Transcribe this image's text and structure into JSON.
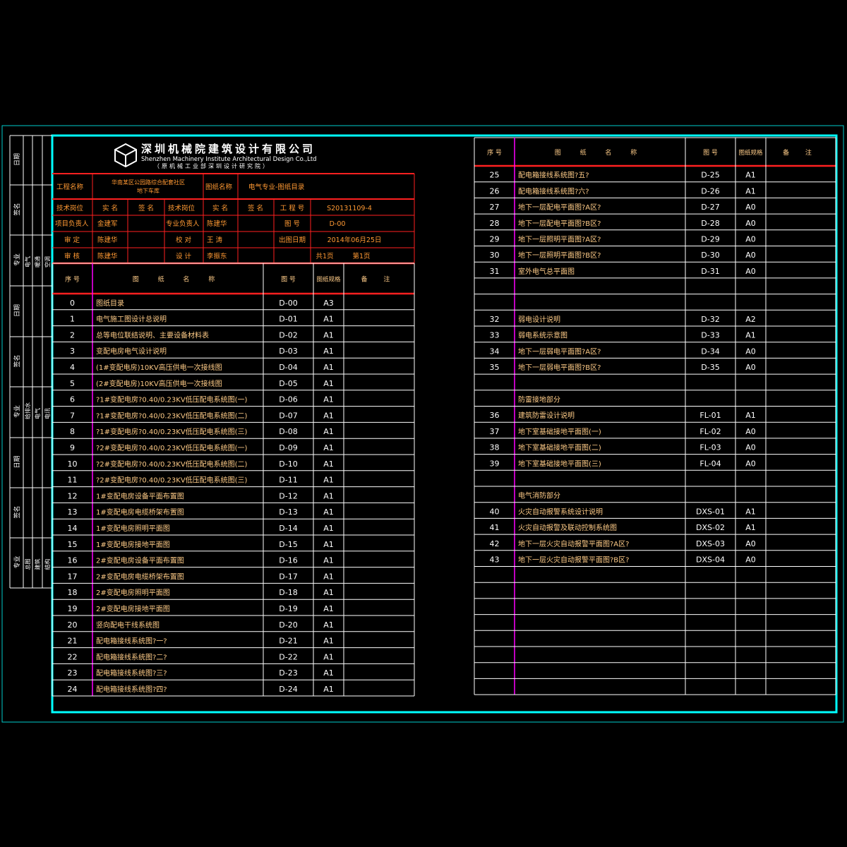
{
  "company": {
    "name_cn": "深圳机械院建筑设计有限公司",
    "name_en": "Shenzhen Machinery Institute Architectural Design Co.,Ltd",
    "subtitle": "（原机械工业部深圳设计研究院）"
  },
  "sidebar": {
    "labels": [
      "日期",
      "签名",
      "专业",
      "日期",
      "签名",
      "专业",
      "日期",
      "签名",
      "专业"
    ],
    "sub_a": [
      "电气",
      "给排水",
      "总图"
    ],
    "sub_b": [
      "暖通",
      "电气",
      "建筑"
    ],
    "sub_c": [
      "空调",
      "电讯",
      "结构"
    ]
  },
  "info": {
    "project_label": "工程名称",
    "project_value_1": "华南某区公园路综合配套社区",
    "project_value_2": "地下车库",
    "drawing_label": "图纸名称",
    "drawing_value": "电气专业-图纸目录",
    "tech_post": "技术岗位",
    "real_name": "实 名",
    "signature": "签 名",
    "job_no_label": "工 程 号",
    "job_no_value": "S20131109-4",
    "proj_lead": "项目负责人",
    "proj_lead_name": "金建军",
    "disc_lead": "专业负责人",
    "disc_lead_name": "陈建华",
    "drawing_no_label": "图 号",
    "drawing_no_value": "D-00",
    "approve": "审 定",
    "approve_name": "陈建华",
    "check": "校 对",
    "check_name": "王 涛",
    "date_label": "出图日期",
    "date_value": "2014年06月25日",
    "review": "审 核",
    "review_name": "陈建华",
    "design": "设 计",
    "design_name": "李振东",
    "pages_total": "共1页",
    "pages_this": "第1页"
  },
  "headers": {
    "no": "序 号",
    "name": "图 纸 名 称",
    "code": "图 号",
    "size": "图纸规格",
    "remark": "备 注"
  },
  "left_rows": [
    {
      "no": "0",
      "name": "图纸目录",
      "code": "D-00",
      "size": "A3"
    },
    {
      "no": "1",
      "name": "电气施工图设计总说明",
      "code": "D-01",
      "size": "A1"
    },
    {
      "no": "2",
      "name": "总等电位联结说明、主要设备材料表",
      "code": "D-02",
      "size": "A1"
    },
    {
      "no": "3",
      "name": "变配电房电气设计说明",
      "code": "D-03",
      "size": "A1"
    },
    {
      "no": "4",
      "name": "(1#变配电房)10KV高压供电一次接线图",
      "code": "D-04",
      "size": "A1"
    },
    {
      "no": "5",
      "name": "(2#变配电房)10KV高压供电一次接线图",
      "code": "D-05",
      "size": "A1"
    },
    {
      "no": "6",
      "name": "?1#变配电房?0.40/0.23KV低压配电系统图(一)",
      "code": "D-06",
      "size": "A1"
    },
    {
      "no": "7",
      "name": "?1#变配电房?0.40/0.23KV低压配电系统图(二)",
      "code": "D-07",
      "size": "A1"
    },
    {
      "no": "8",
      "name": "?1#变配电房?0.40/0.23KV低压配电系统图(三)",
      "code": "D-08",
      "size": "A1"
    },
    {
      "no": "9",
      "name": "?2#变配电房?0.40/0.23KV低压配电系统图(一)",
      "code": "D-09",
      "size": "A1"
    },
    {
      "no": "10",
      "name": "?2#变配电房?0.40/0.23KV低压配电系统图(二)",
      "code": "D-10",
      "size": "A1"
    },
    {
      "no": "11",
      "name": "?2#变配电房?0.40/0.23KV低压配电系统图(三)",
      "code": "D-11",
      "size": "A1"
    },
    {
      "no": "12",
      "name": "1#变配电房设备平面布置图",
      "code": "D-12",
      "size": "A1"
    },
    {
      "no": "13",
      "name": "1#变配电房电缆桥架布置图",
      "code": "D-13",
      "size": "A1"
    },
    {
      "no": "14",
      "name": "1#变配电房照明平面图",
      "code": "D-14",
      "size": "A1"
    },
    {
      "no": "15",
      "name": "1#变配电房接地平面图",
      "code": "D-15",
      "size": "A1"
    },
    {
      "no": "16",
      "name": "2#变配电房设备平面布置图",
      "code": "D-16",
      "size": "A1"
    },
    {
      "no": "17",
      "name": "2#变配电房电缆桥架布置图",
      "code": "D-17",
      "size": "A1"
    },
    {
      "no": "18",
      "name": "2#变配电房照明平面图",
      "code": "D-18",
      "size": "A1"
    },
    {
      "no": "19",
      "name": "2#变配电房接地平面图",
      "code": "D-19",
      "size": "A1"
    },
    {
      "no": "20",
      "name": "竖向配电干线系统图",
      "code": "D-20",
      "size": "A1"
    },
    {
      "no": "21",
      "name": "配电箱接线系统图?一?",
      "code": "D-21",
      "size": "A1"
    },
    {
      "no": "22",
      "name": "配电箱接线系统图?二?",
      "code": "D-22",
      "size": "A1"
    },
    {
      "no": "23",
      "name": "配电箱接线系统图?三?",
      "code": "D-23",
      "size": "A1"
    },
    {
      "no": "24",
      "name": "配电箱接线系统图?四?",
      "code": "D-24",
      "size": "A1"
    }
  ],
  "right_rows": [
    {
      "no": "25",
      "name": "配电箱接线系统图?五?",
      "code": "D-25",
      "size": "A1"
    },
    {
      "no": "26",
      "name": "配电箱接线系统图?六?",
      "code": "D-26",
      "size": "A1"
    },
    {
      "no": "27",
      "name": "地下一层配电平面图?A区?",
      "code": "D-27",
      "size": "A0"
    },
    {
      "no": "28",
      "name": "地下一层配电平面图?B区?",
      "code": "D-28",
      "size": "A0"
    },
    {
      "no": "29",
      "name": "地下一层照明平面图?A区?",
      "code": "D-29",
      "size": "A0"
    },
    {
      "no": "30",
      "name": "地下一层照明平面图?B区?",
      "code": "D-30",
      "size": "A0"
    },
    {
      "no": "31",
      "name": "室外电气总平面图",
      "code": "D-31",
      "size": "A0"
    },
    {
      "no": "",
      "name": "",
      "code": "",
      "size": ""
    },
    {
      "no": "",
      "name": "",
      "code": "",
      "size": ""
    },
    {
      "no": "32",
      "name": "弱电设计说明",
      "code": "D-32",
      "size": "A2"
    },
    {
      "no": "33",
      "name": "弱电系统示意图",
      "code": "D-33",
      "size": "A1"
    },
    {
      "no": "34",
      "name": "地下一层弱电平面图?A区?",
      "code": "D-34",
      "size": "A0"
    },
    {
      "no": "35",
      "name": "地下一层弱电平面图?B区?",
      "code": "D-35",
      "size": "A0"
    },
    {
      "no": "",
      "name": "",
      "code": "",
      "size": ""
    },
    {
      "no": "",
      "name": "防雷接地部分",
      "code": "",
      "size": ""
    },
    {
      "no": "36",
      "name": "建筑防雷设计说明",
      "code": "FL-01",
      "size": "A1"
    },
    {
      "no": "37",
      "name": "地下室基础接地平面图(一)",
      "code": "FL-02",
      "size": "A0"
    },
    {
      "no": "38",
      "name": "地下室基础接地平面图(二)",
      "code": "FL-03",
      "size": "A0"
    },
    {
      "no": "39",
      "name": "地下室基础接地平面图(三)",
      "code": "FL-04",
      "size": "A0"
    },
    {
      "no": "",
      "name": "",
      "code": "",
      "size": ""
    },
    {
      "no": "",
      "name": "电气消防部分",
      "code": "",
      "size": ""
    },
    {
      "no": "40",
      "name": "火灾自动报警系统设计说明",
      "code": "DXS-01",
      "size": "A1"
    },
    {
      "no": "41",
      "name": "火灾自动报警及联动控制系统图",
      "code": "DXS-02",
      "size": "A1"
    },
    {
      "no": "42",
      "name": "地下一层火灾自动报警平面图?A区?",
      "code": "DXS-03",
      "size": "A0"
    },
    {
      "no": "43",
      "name": "地下一层火灾自动报警平面图?B区?",
      "code": "DXS-04",
      "size": "A0"
    },
    {
      "no": "",
      "name": "",
      "code": "",
      "size": ""
    },
    {
      "no": "",
      "name": "",
      "code": "",
      "size": ""
    },
    {
      "no": "",
      "name": "",
      "code": "",
      "size": ""
    },
    {
      "no": "",
      "name": "",
      "code": "",
      "size": ""
    },
    {
      "no": "",
      "name": "",
      "code": "",
      "size": ""
    },
    {
      "no": "",
      "name": "",
      "code": "",
      "size": ""
    },
    {
      "no": "",
      "name": "",
      "code": "",
      "size": ""
    },
    {
      "no": "",
      "name": "",
      "code": "",
      "size": ""
    }
  ],
  "colors": {
    "cyan": "#00ffff",
    "red": "#ff2020",
    "magenta": "#ff00ff",
    "white": "#ffffff",
    "orange": "#ffcc88",
    "gold": "#ff9933"
  }
}
